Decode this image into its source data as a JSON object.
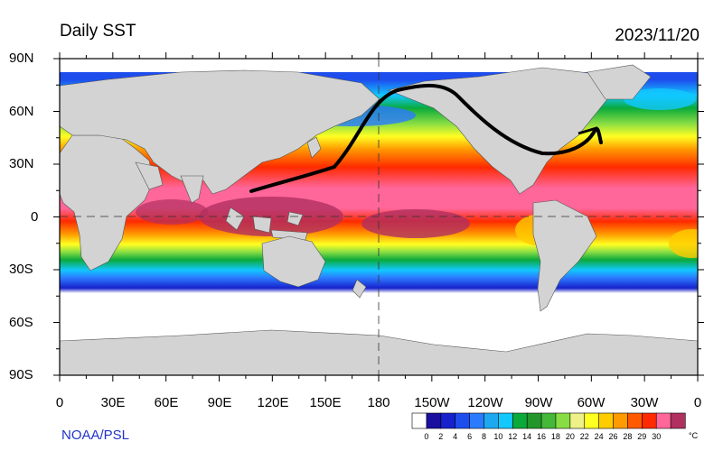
{
  "header": {
    "title": "Daily SST",
    "date": "2023/11/20"
  },
  "credit": "NOAA/PSL",
  "axes": {
    "lat_labels": [
      "90N",
      "60N",
      "30N",
      "0",
      "30S",
      "60S",
      "90S"
    ],
    "lon_labels": [
      "0",
      "30E",
      "60E",
      "90E",
      "120E",
      "150E",
      "180",
      "150W",
      "120W",
      "90W",
      "60W",
      "30W",
      "0"
    ],
    "lat_range": [
      -90,
      90
    ],
    "lon_range": [
      0,
      360
    ],
    "reference_lines": "dashed at equator and 180 meridian"
  },
  "colorbar": {
    "labels": [
      "0",
      "2",
      "4",
      "6",
      "8",
      "10",
      "12",
      "14",
      "16",
      "18",
      "20",
      "22",
      "24",
      "26",
      "28",
      "29",
      "30"
    ],
    "unit": "°C",
    "colors": [
      "#ffffff",
      "#1a0f9e",
      "#1722cc",
      "#1e4dee",
      "#2b7bff",
      "#1ea8f0",
      "#12c8ff",
      "#0aaa3a",
      "#22962a",
      "#44b838",
      "#88dd44",
      "#eef088",
      "#ffff22",
      "#ffcc00",
      "#ff9a00",
      "#ff5a00",
      "#ff2a00",
      "#ff6699",
      "#b03060"
    ]
  },
  "land_color": "#d3d3d3"
}
